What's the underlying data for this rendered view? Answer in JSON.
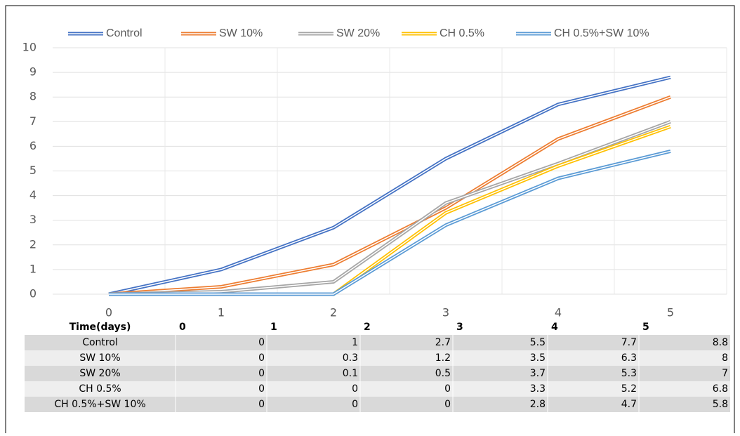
{
  "chart_data": {
    "type": "line",
    "x": [
      0,
      1,
      2,
      3,
      4,
      5
    ],
    "xlim": [
      -0.5,
      5.5
    ],
    "table_header": "Time(days)",
    "ylim": [
      0,
      10
    ],
    "yticks": [
      0,
      1,
      2,
      3,
      4,
      5,
      6,
      7,
      8,
      9,
      10
    ],
    "grid": true,
    "series": [
      {
        "name": "Control",
        "color": "#4472c4",
        "values": [
          0,
          1,
          2.7,
          5.5,
          7.7,
          8.8
        ]
      },
      {
        "name": "SW 10%",
        "color": "#ed7d31",
        "values": [
          0,
          0.3,
          1.2,
          3.5,
          6.3,
          8
        ]
      },
      {
        "name": "SW 20%",
        "color": "#a5a5a5",
        "values": [
          0,
          0.1,
          0.5,
          3.7,
          5.3,
          7
        ]
      },
      {
        "name": "CH 0.5%",
        "color": "#ffc000",
        "values": [
          0,
          0,
          0,
          3.3,
          5.2,
          6.8
        ]
      },
      {
        "name": "CH 0.5%+SW 10%",
        "color": "#5b9bd5",
        "values": [
          0,
          0,
          0,
          2.8,
          4.7,
          5.8
        ]
      }
    ]
  }
}
